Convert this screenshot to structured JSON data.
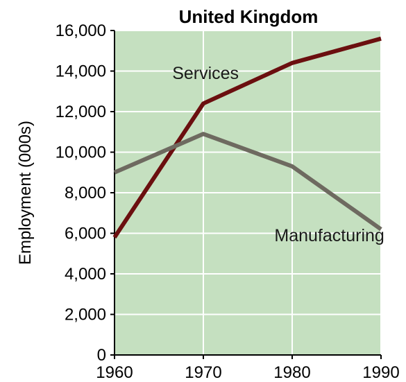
{
  "chart_data": {
    "type": "line",
    "title": "United Kingdom",
    "xlabel": "",
    "ylabel": "Employment (000s)",
    "x": [
      1960,
      1970,
      1980,
      1990
    ],
    "xlim": [
      1960,
      1990
    ],
    "ylim": [
      0,
      16000
    ],
    "xticks": [
      "1960",
      "1970",
      "1980",
      "1990"
    ],
    "yticks": [
      "0",
      "2,000",
      "4,000",
      "6,000",
      "8,000",
      "10,000",
      "12,000",
      "14,000",
      "16,000"
    ],
    "grid": true,
    "background_color": "#c5e0c0",
    "grid_color": "#ffffff",
    "series": [
      {
        "name": "Services",
        "color": "#6b0f0f",
        "values": [
          5800,
          12400,
          14400,
          15600
        ]
      },
      {
        "name": "Manufacturing",
        "color": "#6e6a60",
        "values": [
          9000,
          10900,
          9300,
          6200
        ]
      }
    ],
    "annotations": [
      {
        "text": "Services",
        "x": 1966.5,
        "y": 13600
      },
      {
        "text": "Manufacturing",
        "x": 1978,
        "y": 5600
      }
    ]
  }
}
